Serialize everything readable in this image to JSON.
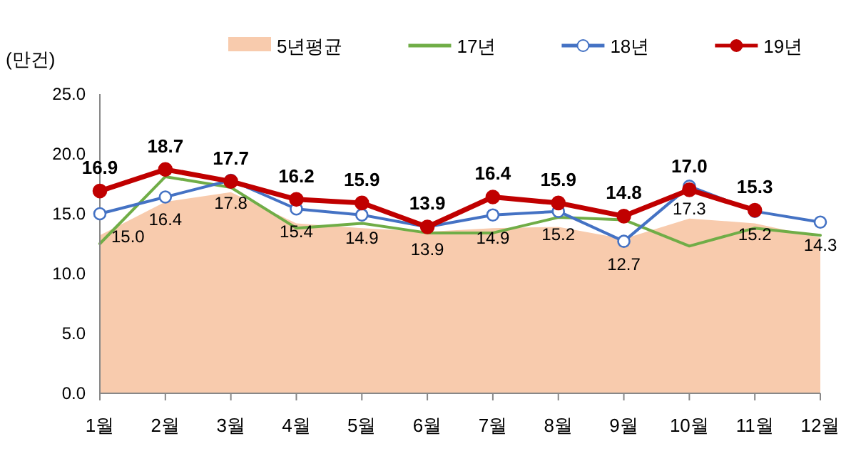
{
  "chart_data": {
    "type": "line",
    "ylabel": "(만건)",
    "categories": [
      "1월",
      "2월",
      "3월",
      "4월",
      "5월",
      "6월",
      "7월",
      "8월",
      "9월",
      "10월",
      "11월",
      "12월"
    ],
    "ylim": [
      0,
      25
    ],
    "yticks": [
      {
        "value": 0,
        "label": "0.0"
      },
      {
        "value": 5,
        "label": "5.0"
      },
      {
        "value": 10,
        "label": "10.0"
      },
      {
        "value": 15,
        "label": "15.0"
      },
      {
        "value": 20,
        "label": "20.0"
      },
      {
        "value": 25,
        "label": "25.0"
      }
    ],
    "grid": false,
    "legend": "top",
    "series": [
      {
        "name": "5년평균",
        "type": "area",
        "color": "#f8cbad",
        "marker": "none",
        "values": [
          13.2,
          16.0,
          16.8,
          14.2,
          13.8,
          13.5,
          13.8,
          13.9,
          12.9,
          14.6,
          14.2,
          13.0
        ]
      },
      {
        "name": "17년",
        "color": "#70ad47",
        "marker": "none",
        "values": [
          12.5,
          18.1,
          17.2,
          13.8,
          14.2,
          13.4,
          13.4,
          14.7,
          14.5,
          12.3,
          13.8,
          13.2
        ]
      },
      {
        "name": "18년",
        "color": "#4472c4",
        "marker": "circle",
        "values": [
          15.0,
          16.4,
          17.8,
          15.4,
          14.9,
          13.9,
          14.9,
          15.2,
          12.7,
          17.3,
          15.2,
          14.3
        ],
        "value_labels": [
          "15.0",
          "16.4",
          "17.8",
          "15.4",
          "14.9",
          "13.9",
          "14.9",
          "15.2",
          "12.7",
          "17.3",
          "15.2",
          "14.3"
        ]
      },
      {
        "name": "19년",
        "color": "#c00000",
        "marker": "circle",
        "values": [
          16.9,
          18.7,
          17.7,
          16.2,
          15.9,
          13.9,
          16.4,
          15.9,
          14.8,
          17.0,
          15.3,
          null
        ],
        "value_labels": [
          "16.9",
          "18.7",
          "17.7",
          "16.2",
          "15.9",
          "13.9",
          "16.4",
          "15.9",
          "14.8",
          "17.0",
          "15.3",
          null
        ]
      }
    ]
  }
}
